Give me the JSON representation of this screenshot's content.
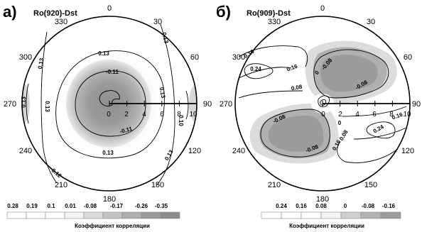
{
  "chart_data": [
    {
      "type": "heatmap",
      "panel_label": "а)",
      "title": "Ro(920)-Dst",
      "azimuth_labels": [
        "0",
        "30",
        "60",
        "90",
        "120",
        "150",
        "180",
        "210",
        "240",
        "270",
        "300",
        "330"
      ],
      "radial_tick_labels": [
        "0",
        "2",
        "4",
        "6",
        "8",
        "10"
      ],
      "contour_labels": [
        "0.13",
        "0.13",
        "0.13",
        "0.13",
        "0.13",
        "0.13",
        "0.13",
        "0.13",
        "-0.11",
        "-0.11",
        "0.10",
        "0.12"
      ],
      "legend": {
        "levels": [
          "0.28",
          "0.19",
          "0.1",
          "0.01",
          "-0.08",
          "-0.17",
          "-0.26",
          "-0.35"
        ],
        "colors": [
          "#ffffff",
          "#ffffff",
          "#ffffff",
          "#f3f3f3",
          "#dadada",
          "#c3c3c3",
          "#aeaeae",
          "#9a9a9a",
          "#8a8a8a"
        ],
        "title": "Коэффициент корреляции"
      }
    },
    {
      "type": "heatmap",
      "panel_label": "б)",
      "title": "Ro(909)-Dst",
      "azimuth_labels": [
        "0",
        "30",
        "60",
        "90",
        "120",
        "150",
        "180",
        "210",
        "240",
        "270",
        "300",
        "330"
      ],
      "radial_tick_labels": [
        "0",
        "2",
        "4",
        "6",
        "8",
        "10"
      ],
      "contour_labels": [
        "0.16",
        "0.24",
        "0.16",
        "0.08",
        "0",
        "-0.08",
        "-0.08",
        "-0.08",
        "-0.08",
        "0",
        "0.08",
        "0.16",
        "0.24",
        "0.16"
      ],
      "legend": {
        "levels": [
          "0.24",
          "0.16",
          "0.08",
          "0",
          "-0.08",
          "-0.16"
        ],
        "colors": [
          "#ffffff",
          "#ffffff",
          "#ffffff",
          "#f4f4f4",
          "#cfcfcf",
          "#b2b2b2",
          "#9c9c9c"
        ],
        "title": "Коэффициент корреляции"
      }
    }
  ]
}
